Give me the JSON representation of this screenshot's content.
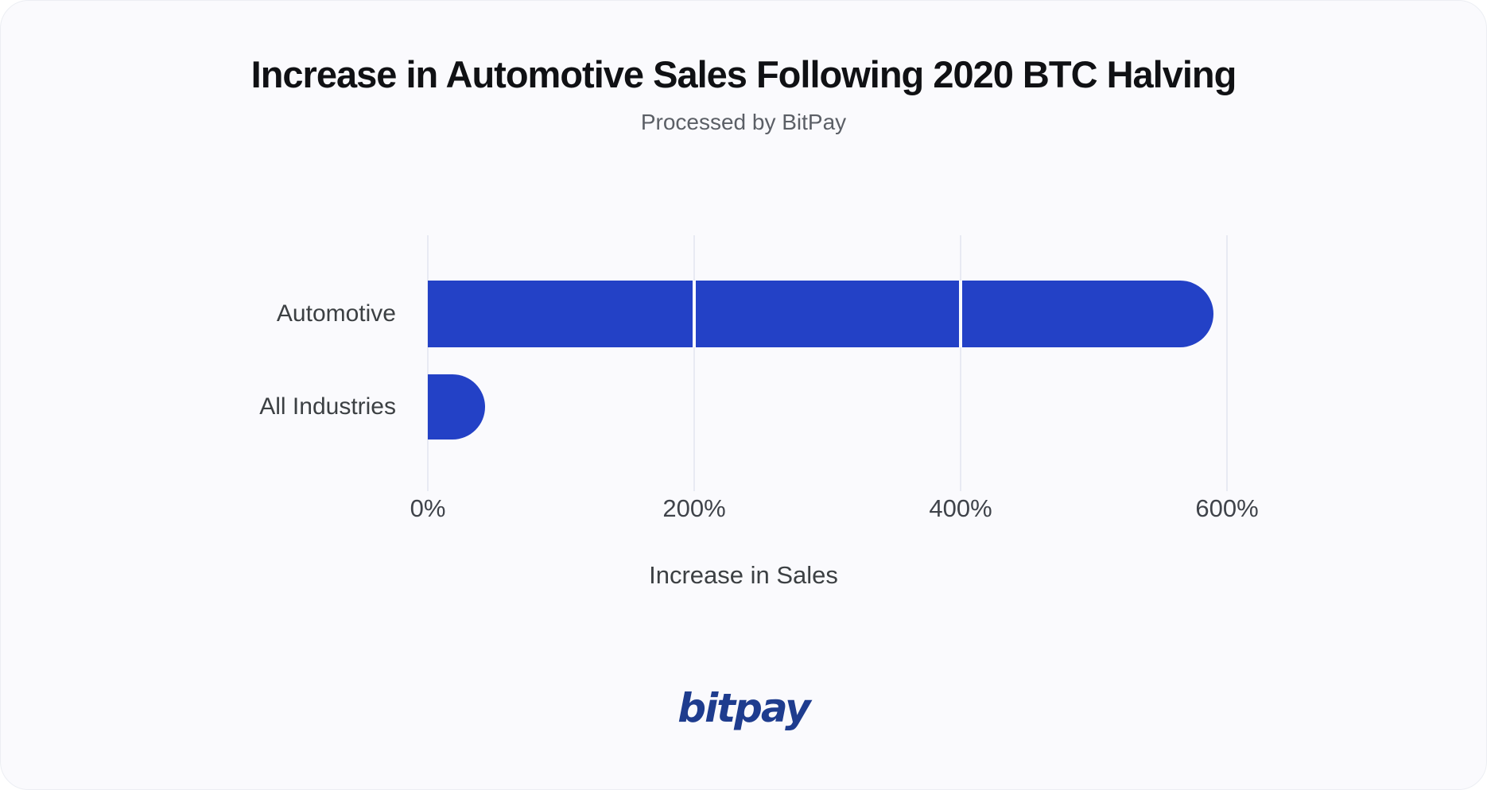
{
  "header": {
    "title": "Increase in Automotive Sales Following 2020 BTC Halving",
    "subtitle": "Processed by BitPay"
  },
  "chart_data": {
    "type": "bar",
    "orientation": "horizontal",
    "title": "Increase in Automotive Sales Following 2020 BTC Halving",
    "subtitle": "Processed by BitPay",
    "categories": [
      "Automotive",
      "All Industries"
    ],
    "values": [
      590,
      43
    ],
    "unit": "%",
    "xlabel": "Increase in Sales",
    "ylabel": "",
    "x_ticks": [
      "0%",
      "200%",
      "400%",
      "600%"
    ],
    "x_tick_values": [
      0,
      200,
      400,
      600
    ],
    "xlim": [
      0,
      600
    ],
    "grid": "vertical-light",
    "legend": "none",
    "bar_color": "#2341c6",
    "bar_corner": "rounded-right"
  },
  "footer": {
    "logo_text": "bitpay"
  },
  "colors": {
    "card_background": "#fafafd",
    "page_background": "#ffffff",
    "bar_blue": "#2341c6",
    "logo_navy": "#1e3c8e",
    "title_text": "#101114",
    "subtitle_text": "#5b5f66",
    "axis_text": "#3c4043",
    "gridline": "#e8eaf3"
  }
}
